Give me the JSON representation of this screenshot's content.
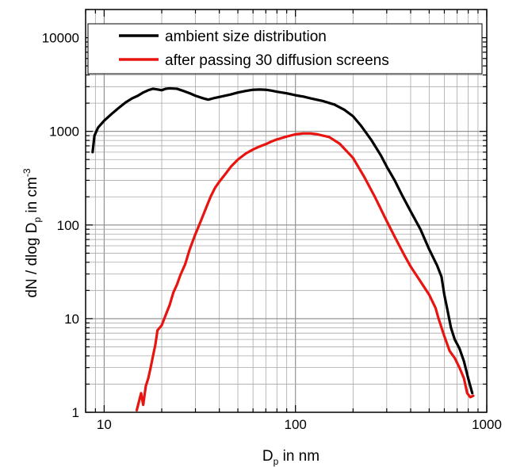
{
  "chart_data": {
    "type": "line",
    "x_scale": "log",
    "y_scale": "log",
    "xlim": [
      8,
      1000
    ],
    "ylim": [
      1,
      20000
    ],
    "grid": true,
    "legend": "top",
    "xlabel": {
      "main": "D",
      "sub": "p",
      "rest": " in nm"
    },
    "ylabel": {
      "p1": "dN / dlog D",
      "sub": "p",
      "p2": " in cm",
      "sup": "-3"
    },
    "x_ticks": [
      {
        "v": 10,
        "label": "10"
      },
      {
        "v": 100,
        "label": "100"
      },
      {
        "v": 1000,
        "label": "1000"
      }
    ],
    "y_ticks": [
      {
        "v": 1,
        "label": "1"
      },
      {
        "v": 10,
        "label": "10"
      },
      {
        "v": 100,
        "label": "100"
      },
      {
        "v": 1000,
        "label": "1000"
      },
      {
        "v": 10000,
        "label": "10000"
      }
    ],
    "series": [
      {
        "name": "ambient size distribution",
        "color": "#000000",
        "points": [
          [
            8.7,
            600
          ],
          [
            8.9,
            900
          ],
          [
            9.3,
            1100
          ],
          [
            10,
            1300
          ],
          [
            11,
            1550
          ],
          [
            12,
            1800
          ],
          [
            13,
            2050
          ],
          [
            14,
            2250
          ],
          [
            15,
            2400
          ],
          [
            16,
            2600
          ],
          [
            17,
            2750
          ],
          [
            18,
            2850
          ],
          [
            19,
            2800
          ],
          [
            20,
            2750
          ],
          [
            21,
            2850
          ],
          [
            22,
            2880
          ],
          [
            24,
            2850
          ],
          [
            26,
            2700
          ],
          [
            28,
            2550
          ],
          [
            30,
            2400
          ],
          [
            33,
            2250
          ],
          [
            35,
            2180
          ],
          [
            38,
            2280
          ],
          [
            42,
            2380
          ],
          [
            46,
            2480
          ],
          [
            50,
            2600
          ],
          [
            55,
            2700
          ],
          [
            60,
            2780
          ],
          [
            65,
            2800
          ],
          [
            70,
            2780
          ],
          [
            75,
            2720
          ],
          [
            80,
            2650
          ],
          [
            90,
            2550
          ],
          [
            100,
            2430
          ],
          [
            110,
            2350
          ],
          [
            120,
            2250
          ],
          [
            140,
            2100
          ],
          [
            160,
            1930
          ],
          [
            180,
            1700
          ],
          [
            200,
            1450
          ],
          [
            220,
            1150
          ],
          [
            250,
            800
          ],
          [
            280,
            550
          ],
          [
            300,
            420
          ],
          [
            330,
            300
          ],
          [
            360,
            210
          ],
          [
            400,
            140
          ],
          [
            450,
            90
          ],
          [
            500,
            55
          ],
          [
            550,
            37
          ],
          [
            580,
            28
          ],
          [
            600,
            18
          ],
          [
            620,
            13
          ],
          [
            650,
            8
          ],
          [
            680,
            6
          ],
          [
            720,
            4.8
          ],
          [
            760,
            3.5
          ],
          [
            800,
            2.3
          ],
          [
            840,
            1.6
          ]
        ]
      },
      {
        "name": "after passing 30 diffusion screens",
        "color": "#e8140f",
        "points": [
          [
            14.8,
            1.05
          ],
          [
            15.2,
            1.3
          ],
          [
            15.6,
            1.6
          ],
          [
            16.0,
            1.2
          ],
          [
            16.5,
            1.9
          ],
          [
            17.0,
            2.3
          ],
          [
            17.5,
            3.0
          ],
          [
            18.0,
            4.0
          ],
          [
            18.5,
            5.2
          ],
          [
            19.0,
            7.5
          ],
          [
            20.0,
            8.5
          ],
          [
            21.0,
            11
          ],
          [
            22.0,
            14
          ],
          [
            23.0,
            19
          ],
          [
            24.0,
            23
          ],
          [
            25.0,
            29
          ],
          [
            26.5,
            38
          ],
          [
            28,
            55
          ],
          [
            30,
            80
          ],
          [
            32,
            110
          ],
          [
            34,
            150
          ],
          [
            36,
            200
          ],
          [
            38,
            250
          ],
          [
            40,
            290
          ],
          [
            43,
            350
          ],
          [
            46,
            420
          ],
          [
            50,
            500
          ],
          [
            55,
            580
          ],
          [
            60,
            640
          ],
          [
            65,
            690
          ],
          [
            70,
            730
          ],
          [
            75,
            780
          ],
          [
            80,
            820
          ],
          [
            90,
            880
          ],
          [
            100,
            930
          ],
          [
            110,
            950
          ],
          [
            120,
            950
          ],
          [
            130,
            930
          ],
          [
            150,
            870
          ],
          [
            170,
            740
          ],
          [
            200,
            520
          ],
          [
            230,
            320
          ],
          [
            260,
            200
          ],
          [
            300,
            110
          ],
          [
            330,
            75
          ],
          [
            370,
            48
          ],
          [
            400,
            36
          ],
          [
            450,
            25
          ],
          [
            500,
            18
          ],
          [
            540,
            13
          ],
          [
            560,
            10
          ],
          [
            600,
            6.5
          ],
          [
            640,
            4.5
          ],
          [
            680,
            3.8
          ],
          [
            720,
            3
          ],
          [
            760,
            2.3
          ],
          [
            790,
            1.6
          ],
          [
            820,
            1.45
          ],
          [
            850,
            1.5
          ]
        ]
      }
    ]
  }
}
